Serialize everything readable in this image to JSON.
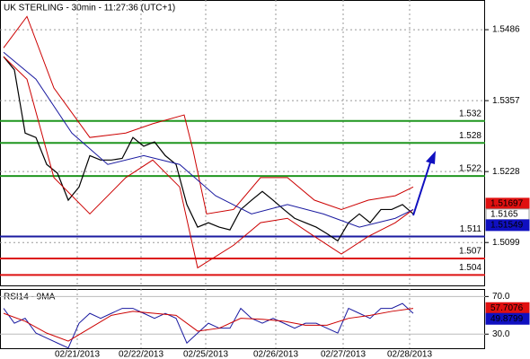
{
  "chart_data": {
    "type": "line",
    "title": "UK STERLING - 30min - 11:27:36 (UTC+1)",
    "xlim": [
      0,
      135
    ],
    "xticks": [
      {
        "value": 21.5,
        "label": "02/21/2013"
      },
      {
        "value": 39.25,
        "label": "02/22/2013"
      },
      {
        "value": 57.25,
        "label": "02/25/2013"
      },
      {
        "value": 76.75,
        "label": "02/26/2013"
      },
      {
        "value": 95.5,
        "label": "02/27/2013"
      },
      {
        "value": 114,
        "label": "02/28/2013"
      }
    ],
    "ylim": [
      1.5021,
      1.554
    ],
    "yticks": [
      1.5486,
      1.5357,
      1.5228,
      1.5099
    ],
    "grid": true,
    "x": [
      1,
      4,
      7,
      10,
      13,
      16,
      19,
      22,
      25,
      28,
      31,
      34,
      37,
      40,
      43,
      46,
      49,
      52,
      55,
      58,
      61,
      64,
      67,
      70,
      73,
      76,
      79,
      82,
      85,
      88,
      91,
      94,
      97,
      100,
      103,
      106,
      109,
      112,
      115
    ],
    "series": [
      {
        "color": "#000000",
        "values": [
          1.5437,
          1.5413,
          1.5298,
          1.529,
          1.5241,
          1.5225,
          1.5176,
          1.52,
          1.5257,
          1.5249,
          1.5249,
          1.5252,
          1.529,
          1.5274,
          1.5282,
          1.5257,
          1.5241,
          1.5168,
          1.5127,
          1.5135,
          1.5127,
          1.5122,
          1.5159,
          1.5176,
          1.5192,
          1.5176,
          1.5159,
          1.5143,
          1.5135,
          1.5127,
          1.5115,
          1.5102,
          1.5135,
          1.5151,
          1.5135,
          1.5159,
          1.5159,
          1.5168,
          1.5151
        ]
      },
      {
        "color": "#cc0000",
        "x": [
          1,
          7.5,
          15,
          25,
          35,
          42.5,
          51.25,
          53.75,
          57.5,
          65,
          72.5,
          80,
          87.5,
          95,
          102.5,
          110,
          115
        ],
        "values": [
          1.5453,
          1.551,
          1.538,
          1.529,
          1.5298,
          1.5315,
          1.5331,
          1.5266,
          1.5151,
          1.5159,
          1.5217,
          1.5217,
          1.5176,
          1.5159,
          1.5176,
          1.5184,
          1.52
        ]
      },
      {
        "color": "#cc0000",
        "x": [
          1,
          7.5,
          15,
          25,
          35,
          42.5,
          50,
          55,
          65,
          72.5,
          80,
          87.5,
          95,
          102.5,
          110,
          115
        ],
        "values": [
          1.5437,
          1.5396,
          1.5217,
          1.5151,
          1.5217,
          1.5249,
          1.52,
          1.5053,
          1.5094,
          1.5135,
          1.5143,
          1.511,
          1.5078,
          1.511,
          1.5135,
          1.5159
        ]
      },
      {
        "color": "#1a1aa0",
        "x": [
          1,
          10,
          20,
          30,
          40,
          50,
          60,
          70,
          80,
          90,
          100,
          110,
          115
        ],
        "values": [
          1.5445,
          1.5396,
          1.5298,
          1.5241,
          1.5257,
          1.5241,
          1.5184,
          1.5151,
          1.5168,
          1.5151,
          1.5127,
          1.5143,
          1.5159
        ]
      }
    ],
    "levels": [
      {
        "value": 1.532,
        "color": "#1f961f"
      },
      {
        "value": 1.528,
        "color": "#1f961f"
      },
      {
        "value": 1.522,
        "color": "#1f961f"
      },
      {
        "value": 1.511,
        "color": "#1a1aa0"
      },
      {
        "value": 1.507,
        "color": "#dd1111"
      },
      {
        "value": 1.504,
        "color": "#dd1111"
      }
    ],
    "price_tags": [
      {
        "value": 1.51697,
        "color": "#e01010"
      },
      {
        "value": 1.5165,
        "color": "#ffffff"
      },
      {
        "value": 1.51549,
        "color": "#1010c0"
      }
    ],
    "rsi": {
      "title": "RSI14 - 9MA",
      "ylim": [
        15,
        78
      ],
      "yticks": [
        {
          "value": 70,
          "label": "70.0"
        },
        {
          "value": 30,
          "label": "30.0"
        }
      ],
      "series": [
        {
          "color": "#1a1aa0",
          "values": [
            57.4,
            41.6,
            46.8,
            31.1,
            25.8,
            20.5,
            15.3,
            41.6,
            52.1,
            46.8,
            52.1,
            57.4,
            57.4,
            52.1,
            46.8,
            52.1,
            46.8,
            20.5,
            31.1,
            41.6,
            36.3,
            36.3,
            57.4,
            46.8,
            41.6,
            46.8,
            41.6,
            36.3,
            41.6,
            41.6,
            36.3,
            31.1,
            57.4,
            52.1,
            46.8,
            57.4,
            57.4,
            62.6,
            52.1
          ]
        },
        {
          "color": "#cc0000",
          "x": [
            1,
            7,
            13,
            19,
            25,
            31,
            37,
            43,
            49,
            55,
            61,
            67,
            73,
            79,
            85,
            91,
            97,
            103,
            109,
            115
          ],
          "values": [
            52.1,
            43.7,
            31.1,
            22.6,
            36.3,
            50,
            54.2,
            52.1,
            50,
            33.2,
            36.3,
            46.8,
            45.8,
            43.7,
            39.5,
            39.5,
            46.8,
            50,
            54.2,
            57.4
          ]
        }
      ],
      "tags": [
        {
          "value": 57.7076,
          "color": "#e01010"
        },
        {
          "value": 49.8799,
          "color": "#1010c0"
        }
      ]
    }
  }
}
